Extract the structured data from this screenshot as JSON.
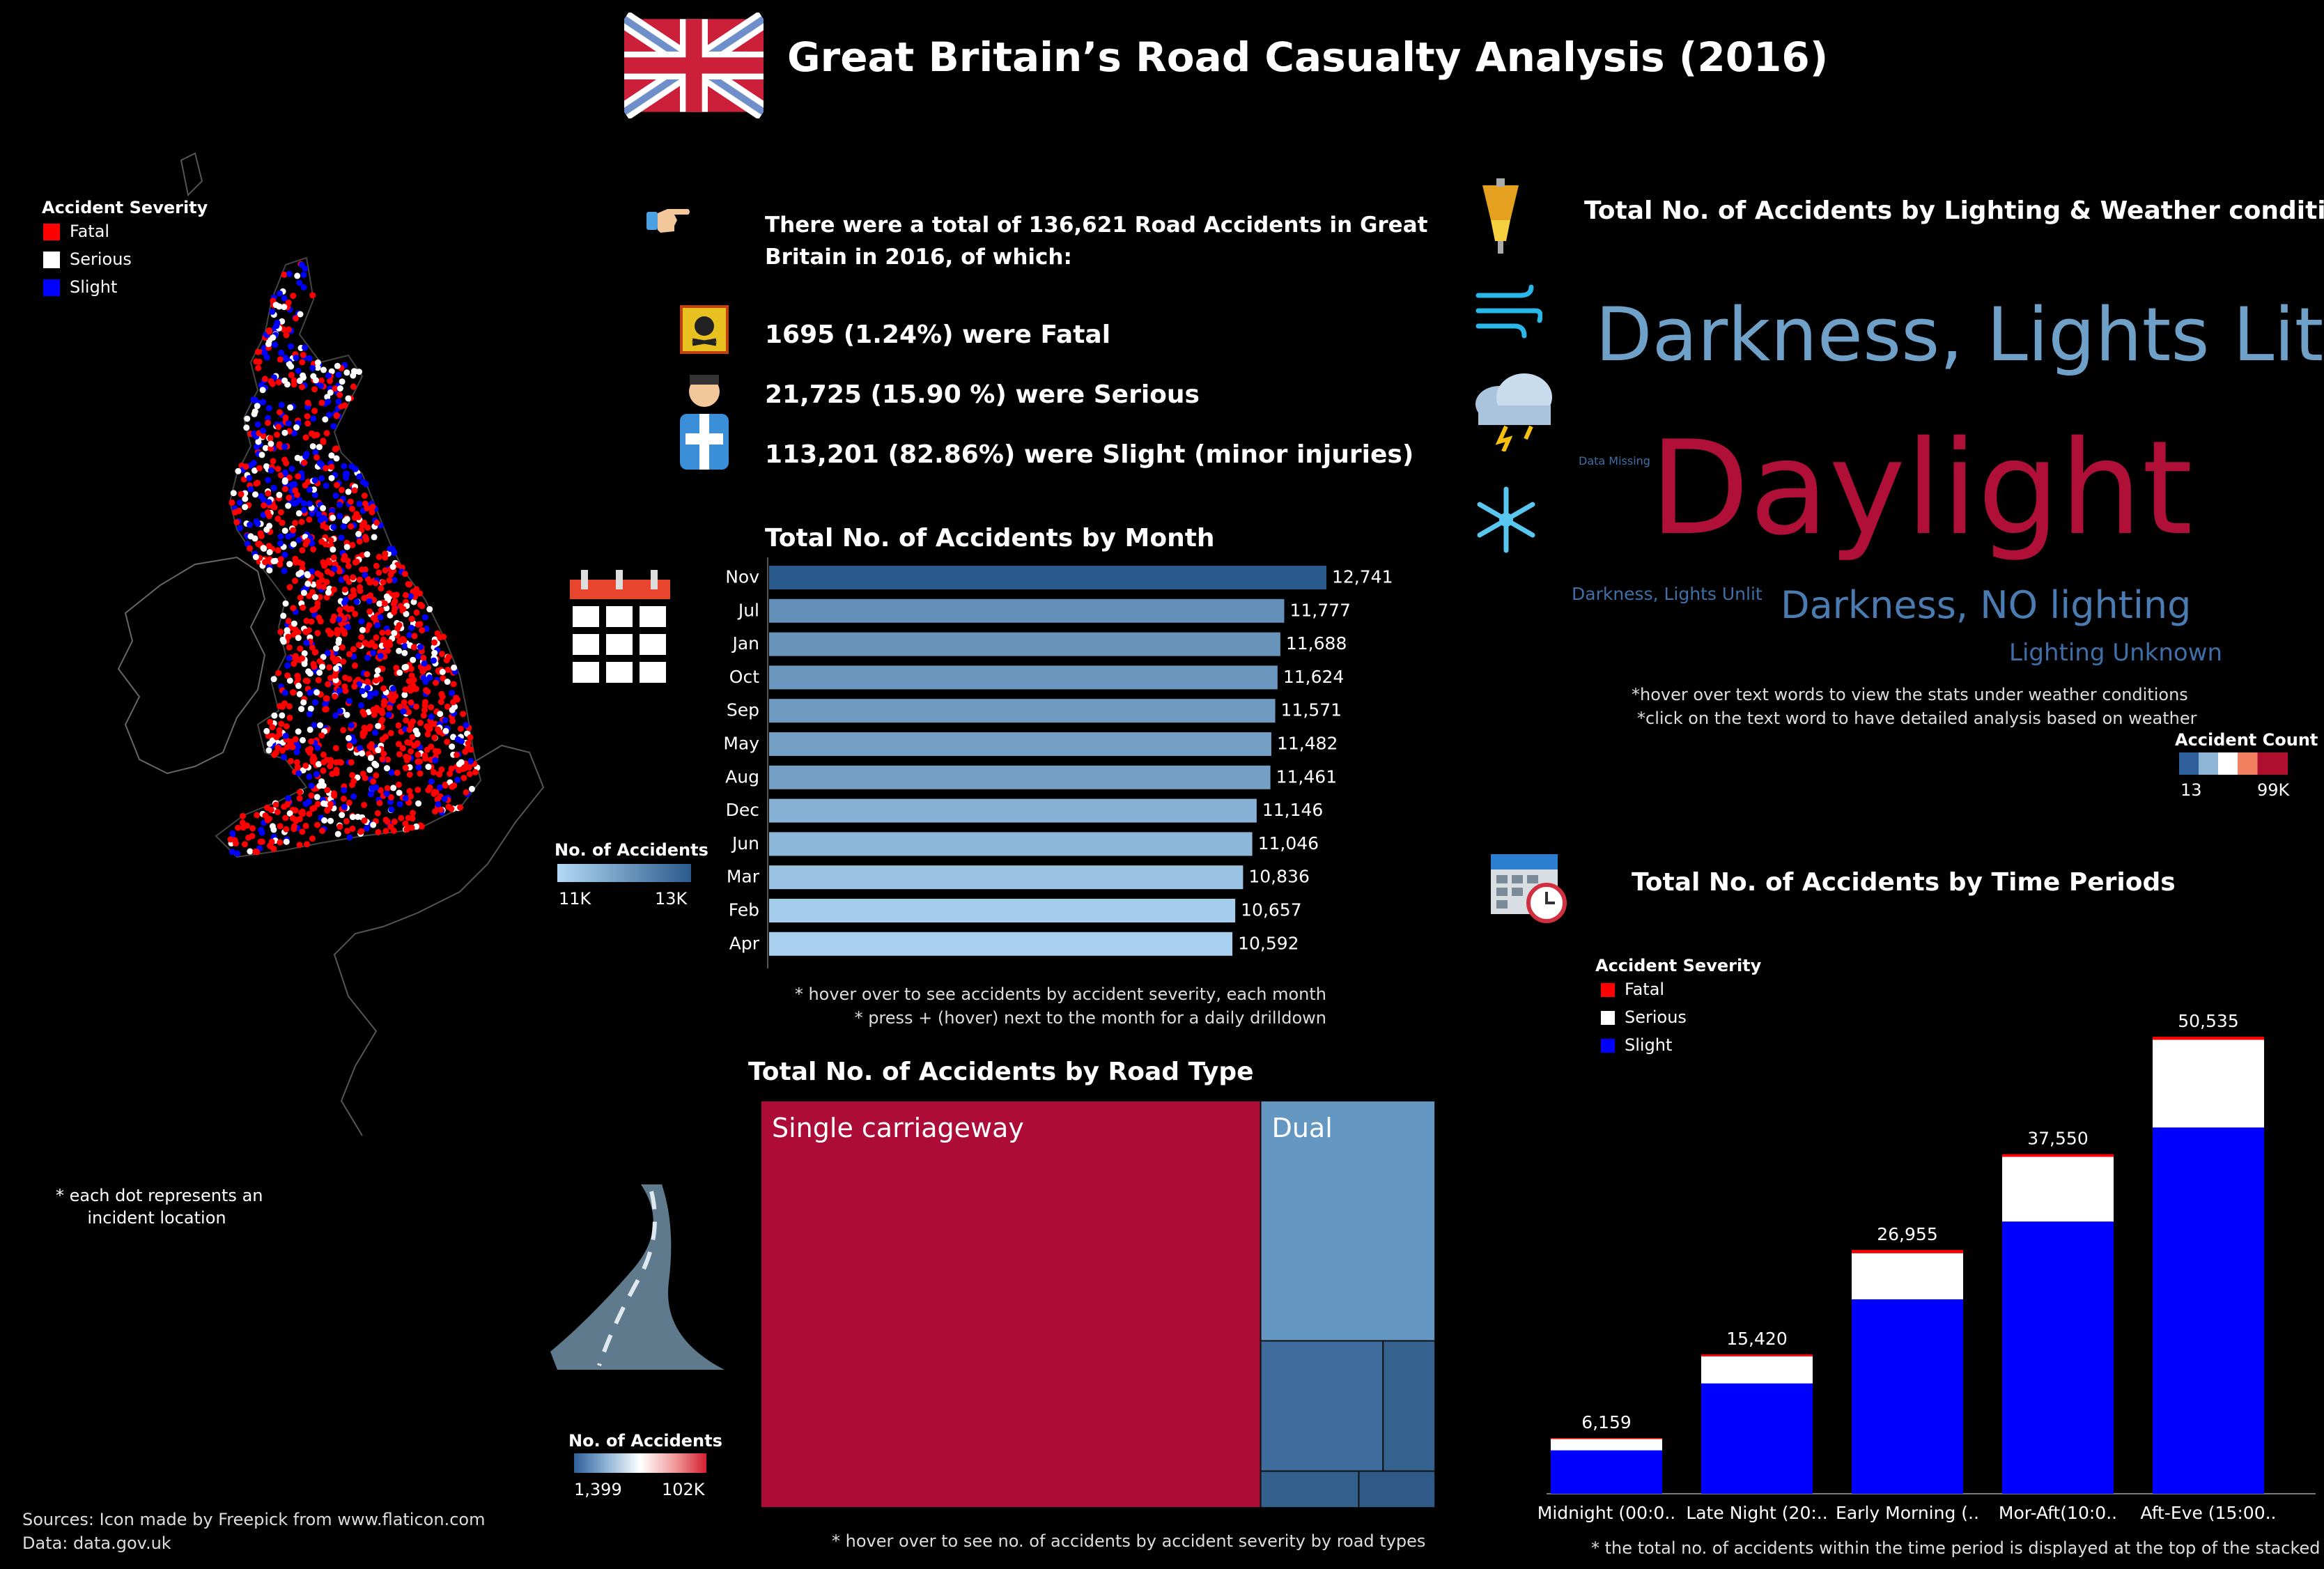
{
  "header": {
    "title": "Great Britain’s Road Casualty Analysis  (2016)"
  },
  "map": {
    "legend_title": "Accident Severity",
    "legend": [
      {
        "label": "Fatal",
        "color": "#ff0000"
      },
      {
        "label": "Serious",
        "color": "#ffffff"
      },
      {
        "label": "Slight",
        "color": "#0000ff"
      }
    ],
    "note": [
      "*  each dot represents an",
      "incident location"
    ]
  },
  "summary": {
    "intro": [
      "There were a total of 136,621 Road Accidents in Great",
      "Britain in 2016, of which:"
    ],
    "fatal": "1695 (1.24%) were Fatal",
    "serious": "21,725 (15.90 %) were Serious",
    "slight": "113,201 (82.86%) were Slight (minor injuries)"
  },
  "month_chart": {
    "title": "Total No. of Accidents by Month",
    "legend_title": "No. of Accidents",
    "legend_min": "11K",
    "legend_max": "13K",
    "notes": [
      "* hover over to see accidents by accident severity, each month",
      "* press +  (hover) next to the month for a daily drilldown"
    ]
  },
  "road_chart": {
    "title": "Total No. of Accidents by Road Type",
    "legend_title": "No. of Accidents",
    "legend_min": "1,399",
    "legend_max": "102K",
    "note": "* hover over to see no. of accidents by accident severity by road types"
  },
  "lighting": {
    "title": "Total No. of Accidents by Lighting & Weather conditions",
    "words": [
      {
        "text": "Darkness, Lights Lit",
        "color": "#6fa0c8"
      },
      {
        "text": "Data Missing",
        "color": "#3f6fa8"
      },
      {
        "text": "Daylight",
        "color": "#b01038"
      },
      {
        "text": "Darkness, Lights Unlit",
        "color": "#3f6fa8"
      },
      {
        "text": "Darkness, NO lighting",
        "color": "#4a7cb2"
      },
      {
        "text": "Lighting Unknown",
        "color": "#3f6fa8"
      }
    ],
    "notes": [
      "*hover over text words to view the stats under weather conditions",
      "*click on the text word to have detailed analysis based on weather"
    ],
    "legend_title": "Accident Count",
    "legend_min": "13",
    "legend_max": "99K"
  },
  "time_chart": {
    "title": "Total No. of Accidents by Time  Periods",
    "legend_title": "Accident Severity",
    "legend": [
      {
        "label": "Fatal",
        "color": "#ff0000"
      },
      {
        "label": "Serious",
        "color": "#ffffff"
      },
      {
        "label": "Slight",
        "color": "#0000ff"
      }
    ],
    "note": "* the total no. of accidents within the time period is displayed at the top of the stacked bar"
  },
  "sources": [
    "Sources: Icon made by Freepick from www.flaticon.com",
    "Data: data.gov.uk"
  ],
  "chart_data": [
    {
      "type": "bar",
      "orientation": "horizontal",
      "title": "Total No. of Accidents by Month",
      "categories": [
        "Nov",
        "Jul",
        "Jan",
        "Oct",
        "Sep",
        "May",
        "Aug",
        "Dec",
        "Jun",
        "Mar",
        "Feb",
        "Apr"
      ],
      "values": [
        12741,
        11777,
        11688,
        11624,
        11571,
        11482,
        11461,
        11146,
        11046,
        10836,
        10657,
        10592
      ],
      "labels": [
        "12,741",
        "11,777",
        "11,688",
        "11,624",
        "11,571",
        "11,482",
        "11,461",
        "11,146",
        "11,046",
        "10,836",
        "10,657",
        "10,592"
      ],
      "color_range": [
        "#a8d0ee",
        "#2a5a8c"
      ]
    },
    {
      "type": "treemap",
      "title": "Total No. of Accidents by Road Type",
      "items": [
        {
          "label": "Single carriageway",
          "value": 102000,
          "color": "#ac0c37"
        },
        {
          "label": "Dual",
          "value": 21000,
          "color": "#6497c2"
        },
        {
          "label": "",
          "value": 8000,
          "color": "#3d6c9d"
        },
        {
          "label": "",
          "value": 3400,
          "color": "#35618f"
        },
        {
          "label": "",
          "value": 1800,
          "color": "#34608d"
        },
        {
          "label": "",
          "value": 1399,
          "color": "#2f5a87"
        }
      ]
    },
    {
      "type": "bar",
      "stacked": true,
      "title": "Total No. of Accidents by Time  Periods",
      "categories": [
        "Midnight (00:0..",
        "Late Night (20:..",
        "Early Morning (..",
        "Mor-Aft(10:0..",
        "Aft-Eve (15:00.."
      ],
      "totals": [
        "6,159",
        "15,420",
        "26,955",
        "37,550",
        "50,535"
      ],
      "series": [
        {
          "name": "Slight",
          "color": "#0000ff",
          "values": [
            4800,
            12200,
            21500,
            30100,
            40500
          ]
        },
        {
          "name": "Serious",
          "color": "#ffffff",
          "values": [
            1250,
            3000,
            5100,
            7150,
            9700
          ]
        },
        {
          "name": "Fatal",
          "color": "#ff0000",
          "values": [
            109,
            220,
            355,
            300,
            335
          ]
        }
      ],
      "ylim": [
        0,
        52000
      ]
    }
  ]
}
